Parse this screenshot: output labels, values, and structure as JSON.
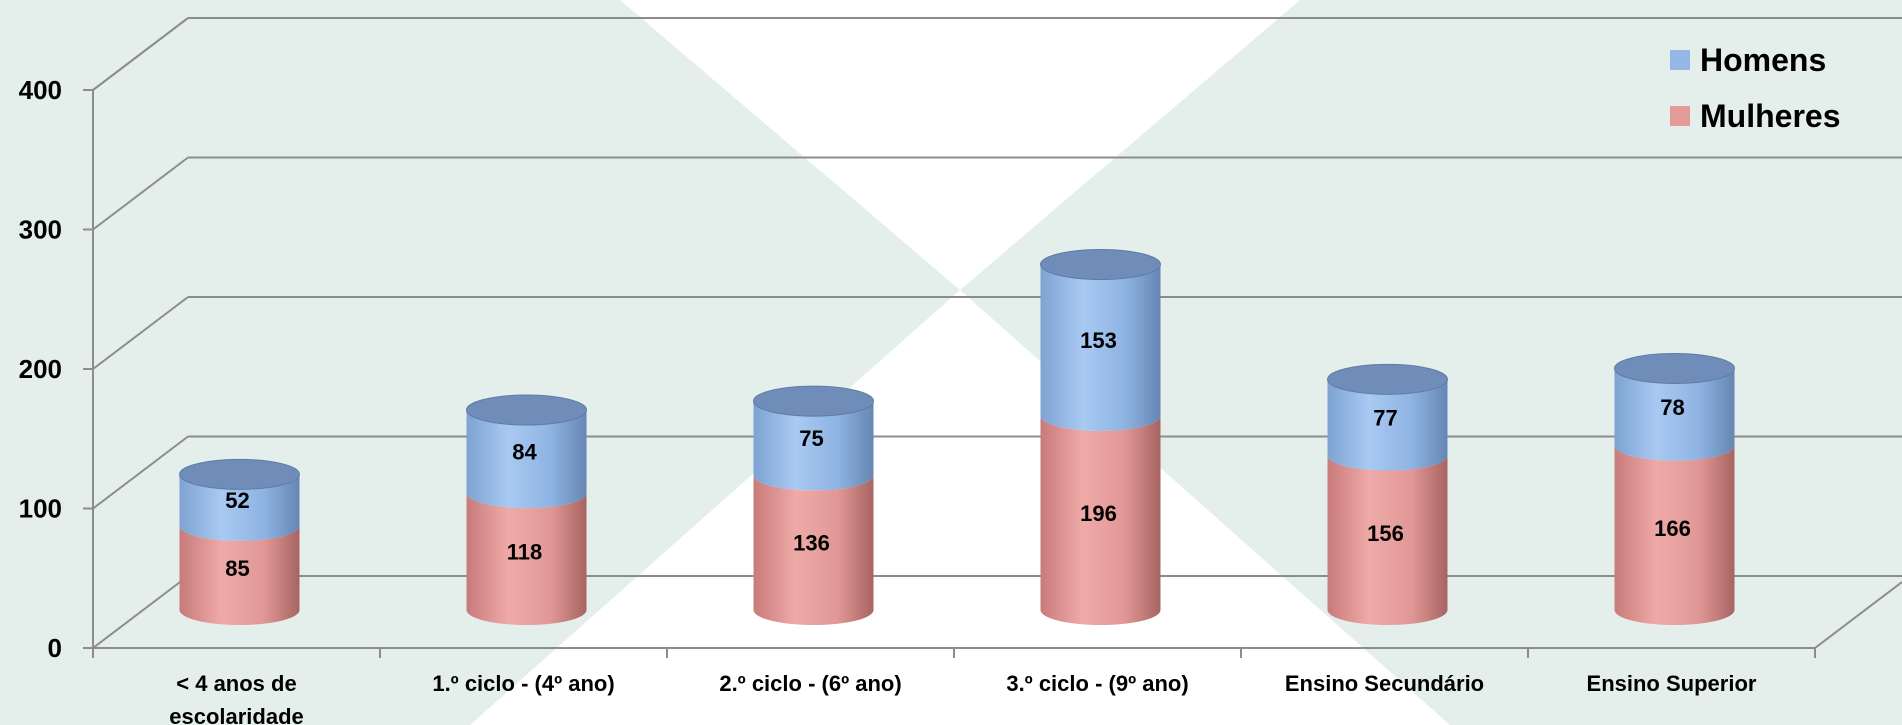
{
  "chart_data": {
    "type": "bar",
    "stacked": true,
    "style": "3d-cylinder",
    "categories": [
      [
        "< 4 anos de",
        "escolaridade"
      ],
      [
        "1.º ciclo - (4º ano)"
      ],
      [
        "2.º ciclo - (6º ano)"
      ],
      [
        "3.º ciclo - (9º ano)"
      ],
      [
        "Ensino Secundário"
      ],
      [
        "Ensino Superior"
      ]
    ],
    "series": [
      {
        "name": "Mulheres",
        "values": [
          85,
          118,
          136,
          196,
          156,
          166
        ],
        "color": "#e39a98"
      },
      {
        "name": "Homens",
        "values": [
          52,
          84,
          75,
          153,
          77,
          78
        ],
        "color": "#95b9e6"
      }
    ],
    "ylim": [
      0,
      400
    ],
    "yticks": [
      "0",
      "100",
      "200",
      "300",
      "400"
    ],
    "grid": true,
    "legend_position": "top-right",
    "legend": [
      "Homens",
      "Mulheres"
    ],
    "title": "",
    "xlabel": "",
    "ylabel": ""
  },
  "colors": {
    "background": "#e4efec",
    "gridline": "#8c8c8c",
    "watermark": "#ffffff"
  }
}
